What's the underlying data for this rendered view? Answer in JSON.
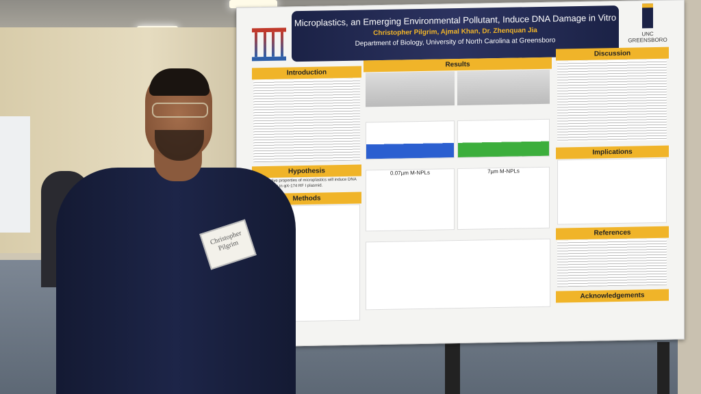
{
  "poster": {
    "title": "Microplastics, an Emerging Environmental Pollutant, Induce DNA Damage in Vitro",
    "authors": "Christopher Pilgrim, Ajmal Khan, Dr. Zhenquan Jia",
    "department": "Department of Biology, University of North Carolina at Greensboro",
    "logo_text": "UNC GREENSBORO",
    "sections": {
      "introduction": "Introduction",
      "hypothesis": "Hypothesis",
      "methods": "Methods",
      "results": "Results",
      "discussion": "Discussion",
      "implications": "Implications",
      "references": "References",
      "acknowledgements": "Acknowledgements"
    },
    "hypothesis_text": "The oxidative properties of microplastics will induce DNA strand breaks in φX-174 RF I plasmid.",
    "chart_titles": [
      "0.07µm M-NPLs",
      "7µm M-NPLs"
    ]
  },
  "badge": {
    "name": "Christopher Pilgrim"
  }
}
